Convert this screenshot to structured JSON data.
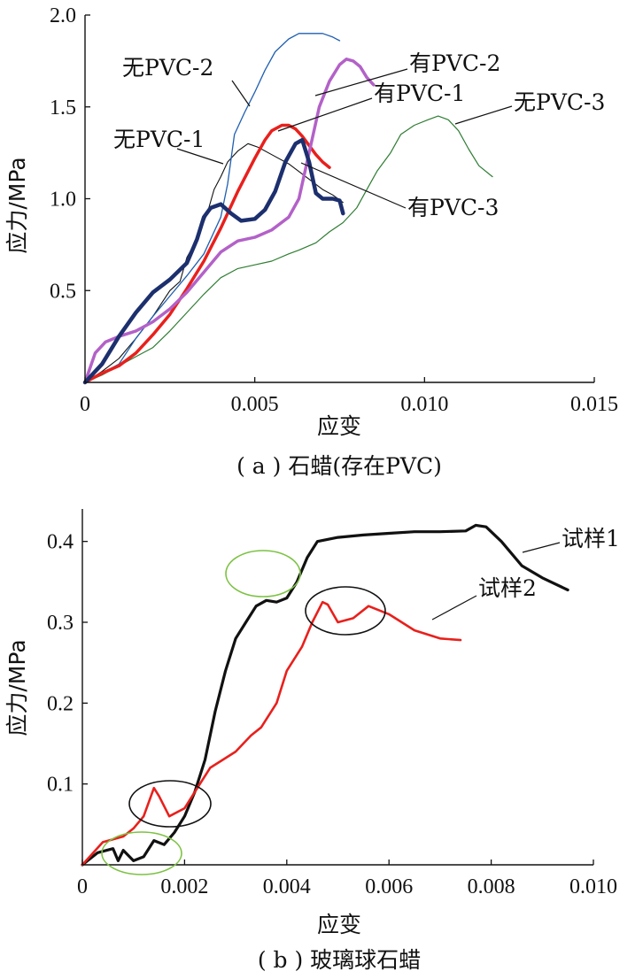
{
  "chart_data": [
    {
      "type": "line",
      "caption": "( a ) 石蜡(存在PVC)",
      "xlabel": "应变",
      "ylabel": "应力/MPa",
      "xlim": [
        0,
        0.015
      ],
      "ylim": [
        0,
        2.0
      ],
      "xticks": [
        {
          "v": 0,
          "label": "0"
        },
        {
          "v": 0.005,
          "label": "0.005"
        },
        {
          "v": 0.01,
          "label": "0.010"
        },
        {
          "v": 0.015,
          "label": "0.015"
        }
      ],
      "yticks": [
        {
          "v": 0.5,
          "label": "0.5"
        },
        {
          "v": 1.0,
          "label": "1.0"
        },
        {
          "v": 1.5,
          "label": "1.5"
        },
        {
          "v": 2.0,
          "label": "2.0"
        }
      ],
      "series": [
        {
          "name": "无PVC-1",
          "color": "#111111",
          "width": 1.1,
          "points": [
            [
              0,
              0
            ],
            [
              0.0005,
              0.06
            ],
            [
              0.001,
              0.13
            ],
            [
              0.0015,
              0.24
            ],
            [
              0.002,
              0.36
            ],
            [
              0.0025,
              0.5
            ],
            [
              0.0028,
              0.55
            ],
            [
              0.003,
              0.68
            ],
            [
              0.0033,
              0.78
            ],
            [
              0.0036,
              0.92
            ],
            [
              0.0038,
              1.05
            ],
            [
              0.004,
              1.12
            ],
            [
              0.0042,
              1.2
            ],
            [
              0.0045,
              1.26
            ],
            [
              0.0048,
              1.3
            ],
            [
              0.0051,
              1.28
            ],
            [
              0.0055,
              1.24
            ],
            [
              0.006,
              1.19
            ],
            [
              0.0065,
              1.12
            ],
            [
              0.007,
              1.05
            ],
            [
              0.0073,
              1.02
            ],
            [
              0.0076,
              0.98
            ]
          ]
        },
        {
          "name": "无PVC-2",
          "color": "#1f5fb0",
          "width": 1.3,
          "points": [
            [
              0,
              0
            ],
            [
              0.0005,
              0.05
            ],
            [
              0.001,
              0.1
            ],
            [
              0.0015,
              0.24
            ],
            [
              0.002,
              0.36
            ],
            [
              0.0025,
              0.47
            ],
            [
              0.003,
              0.58
            ],
            [
              0.0035,
              0.7
            ],
            [
              0.004,
              0.9
            ],
            [
              0.0042,
              1.08
            ],
            [
              0.0044,
              1.35
            ],
            [
              0.0047,
              1.47
            ],
            [
              0.005,
              1.58
            ],
            [
              0.0053,
              1.7
            ],
            [
              0.0056,
              1.8
            ],
            [
              0.006,
              1.87
            ],
            [
              0.0063,
              1.9
            ],
            [
              0.0067,
              1.9
            ],
            [
              0.007,
              1.9
            ],
            [
              0.0073,
              1.88
            ],
            [
              0.0075,
              1.86
            ]
          ]
        },
        {
          "name": "无PVC-3",
          "color": "#2e7d32",
          "width": 1.2,
          "points": [
            [
              0,
              0
            ],
            [
              0.0005,
              0.04
            ],
            [
              0.001,
              0.09
            ],
            [
              0.0015,
              0.14
            ],
            [
              0.002,
              0.19
            ],
            [
              0.0025,
              0.28
            ],
            [
              0.003,
              0.38
            ],
            [
              0.0035,
              0.48
            ],
            [
              0.004,
              0.57
            ],
            [
              0.0045,
              0.62
            ],
            [
              0.005,
              0.64
            ],
            [
              0.0055,
              0.66
            ],
            [
              0.006,
              0.7
            ],
            [
              0.0063,
              0.72
            ],
            [
              0.0068,
              0.76
            ],
            [
              0.0072,
              0.82
            ],
            [
              0.0076,
              0.87
            ],
            [
              0.008,
              0.95
            ],
            [
              0.0083,
              1.05
            ],
            [
              0.0086,
              1.15
            ],
            [
              0.009,
              1.25
            ],
            [
              0.0093,
              1.35
            ],
            [
              0.0097,
              1.4
            ],
            [
              0.0101,
              1.43
            ],
            [
              0.0104,
              1.45
            ],
            [
              0.0107,
              1.43
            ],
            [
              0.011,
              1.37
            ],
            [
              0.0113,
              1.27
            ],
            [
              0.0116,
              1.18
            ],
            [
              0.012,
              1.12
            ]
          ]
        },
        {
          "name": "有PVC-1",
          "color": "#e8201c",
          "width": 3.5,
          "points": [
            [
              0,
              0
            ],
            [
              0.0005,
              0.05
            ],
            [
              0.001,
              0.09
            ],
            [
              0.0015,
              0.16
            ],
            [
              0.002,
              0.26
            ],
            [
              0.0025,
              0.37
            ],
            [
              0.003,
              0.51
            ],
            [
              0.0035,
              0.66
            ],
            [
              0.004,
              0.84
            ],
            [
              0.0045,
              1.04
            ],
            [
              0.005,
              1.22
            ],
            [
              0.0053,
              1.32
            ],
            [
              0.0055,
              1.37
            ],
            [
              0.0058,
              1.4
            ],
            [
              0.006,
              1.4
            ],
            [
              0.0062,
              1.38
            ],
            [
              0.0064,
              1.34
            ],
            [
              0.0066,
              1.29
            ],
            [
              0.0068,
              1.24
            ],
            [
              0.007,
              1.2
            ],
            [
              0.0072,
              1.17
            ]
          ]
        },
        {
          "name": "有PVC-2",
          "color": "#b361c8",
          "width": 3.5,
          "points": [
            [
              0,
              0
            ],
            [
              0.0003,
              0.16
            ],
            [
              0.0006,
              0.22
            ],
            [
              0.001,
              0.25
            ],
            [
              0.0015,
              0.28
            ],
            [
              0.002,
              0.33
            ],
            [
              0.0025,
              0.4
            ],
            [
              0.003,
              0.49
            ],
            [
              0.0035,
              0.6
            ],
            [
              0.004,
              0.71
            ],
            [
              0.0045,
              0.77
            ],
            [
              0.005,
              0.79
            ],
            [
              0.0055,
              0.83
            ],
            [
              0.006,
              0.9
            ],
            [
              0.0063,
              1.0
            ],
            [
              0.0066,
              1.25
            ],
            [
              0.0069,
              1.5
            ],
            [
              0.0072,
              1.64
            ],
            [
              0.0075,
              1.73
            ],
            [
              0.0077,
              1.76
            ],
            [
              0.0079,
              1.75
            ],
            [
              0.0081,
              1.72
            ],
            [
              0.0083,
              1.66
            ],
            [
              0.0085,
              1.62
            ]
          ]
        },
        {
          "name": "有PVC-3",
          "color": "#1c2f6e",
          "width": 4.5,
          "points": [
            [
              0,
              0
            ],
            [
              0.0005,
              0.1
            ],
            [
              0.001,
              0.25
            ],
            [
              0.0015,
              0.38
            ],
            [
              0.002,
              0.49
            ],
            [
              0.0025,
              0.56
            ],
            [
              0.003,
              0.65
            ],
            [
              0.0033,
              0.78
            ],
            [
              0.0035,
              0.9
            ],
            [
              0.0037,
              0.95
            ],
            [
              0.004,
              0.97
            ],
            [
              0.0043,
              0.92
            ],
            [
              0.0046,
              0.88
            ],
            [
              0.005,
              0.89
            ],
            [
              0.0053,
              0.94
            ],
            [
              0.0056,
              1.04
            ],
            [
              0.0059,
              1.2
            ],
            [
              0.0062,
              1.3
            ],
            [
              0.0064,
              1.32
            ],
            [
              0.0066,
              1.2
            ],
            [
              0.0068,
              1.03
            ],
            [
              0.007,
              1.0
            ],
            [
              0.0073,
              1.0
            ],
            [
              0.0075,
              0.99
            ],
            [
              0.0076,
              0.92
            ]
          ]
        }
      ],
      "annotations": [
        {
          "text": "无PVC-2",
          "series": "无PVC-2"
        },
        {
          "text": "有PVC-2",
          "series": "有PVC-2"
        },
        {
          "text": "有PVC-1",
          "series": "有PVC-1"
        },
        {
          "text": "无PVC-3",
          "series": "无PVC-3"
        },
        {
          "text": "无PVC-1",
          "series": "无PVC-1"
        },
        {
          "text": "有PVC-3",
          "series": "有PVC-3"
        }
      ]
    },
    {
      "type": "line",
      "caption": "( b ) 玻璃球石蜡",
      "xlabel": "应变",
      "ylabel": "应力/MPa",
      "xlim": [
        0,
        0.01
      ],
      "ylim": [
        0,
        0.45
      ],
      "xticks": [
        {
          "v": 0,
          "label": "0"
        },
        {
          "v": 0.002,
          "label": "0.002"
        },
        {
          "v": 0.004,
          "label": "0.004"
        },
        {
          "v": 0.006,
          "label": "0.006"
        },
        {
          "v": 0.008,
          "label": "0.008"
        },
        {
          "v": 0.01,
          "label": "0.010"
        }
      ],
      "yticks": [
        {
          "v": 0.1,
          "label": "0.1"
        },
        {
          "v": 0.2,
          "label": "0.2"
        },
        {
          "v": 0.3,
          "label": "0.3"
        },
        {
          "v": 0.4,
          "label": "0.4"
        }
      ],
      "series": [
        {
          "name": "试样1",
          "color": "#111111",
          "width": 3.2,
          "points": [
            [
              0,
              0
            ],
            [
              0.0003,
              0.015
            ],
            [
              0.0006,
              0.02
            ],
            [
              0.0007,
              0.005
            ],
            [
              0.0008,
              0.018
            ],
            [
              0.001,
              0.005
            ],
            [
              0.0012,
              0.01
            ],
            [
              0.0014,
              0.03
            ],
            [
              0.0016,
              0.025
            ],
            [
              0.0018,
              0.04
            ],
            [
              0.002,
              0.06
            ],
            [
              0.0022,
              0.09
            ],
            [
              0.0024,
              0.13
            ],
            [
              0.0026,
              0.19
            ],
            [
              0.0028,
              0.24
            ],
            [
              0.003,
              0.28
            ],
            [
              0.0032,
              0.3
            ],
            [
              0.0034,
              0.32
            ],
            [
              0.0036,
              0.327
            ],
            [
              0.0038,
              0.325
            ],
            [
              0.004,
              0.33
            ],
            [
              0.0042,
              0.35
            ],
            [
              0.0044,
              0.38
            ],
            [
              0.0046,
              0.4
            ],
            [
              0.005,
              0.405
            ],
            [
              0.0055,
              0.408
            ],
            [
              0.006,
              0.41
            ],
            [
              0.0065,
              0.412
            ],
            [
              0.007,
              0.412
            ],
            [
              0.0075,
              0.413
            ],
            [
              0.0077,
              0.42
            ],
            [
              0.0079,
              0.418
            ],
            [
              0.0082,
              0.4
            ],
            [
              0.0086,
              0.37
            ],
            [
              0.009,
              0.355
            ],
            [
              0.0095,
              0.34
            ]
          ]
        },
        {
          "name": "试样2",
          "color": "#e8201c",
          "width": 2.6,
          "points": [
            [
              0,
              0
            ],
            [
              0.0004,
              0.028
            ],
            [
              0.0008,
              0.035
            ],
            [
              0.001,
              0.045
            ],
            [
              0.0012,
              0.06
            ],
            [
              0.0014,
              0.095
            ],
            [
              0.0015,
              0.085
            ],
            [
              0.0017,
              0.06
            ],
            [
              0.002,
              0.07
            ],
            [
              0.0022,
              0.09
            ],
            [
              0.0025,
              0.12
            ],
            [
              0.003,
              0.14
            ],
            [
              0.0033,
              0.16
            ],
            [
              0.0035,
              0.17
            ],
            [
              0.0038,
              0.2
            ],
            [
              0.004,
              0.24
            ],
            [
              0.0043,
              0.27
            ],
            [
              0.0045,
              0.3
            ],
            [
              0.0047,
              0.325
            ],
            [
              0.0048,
              0.322
            ],
            [
              0.005,
              0.3
            ],
            [
              0.0053,
              0.305
            ],
            [
              0.0056,
              0.32
            ],
            [
              0.006,
              0.31
            ],
            [
              0.0065,
              0.29
            ],
            [
              0.007,
              0.28
            ],
            [
              0.0074,
              0.278
            ]
          ]
        }
      ],
      "annotations": [
        {
          "text": "试样1",
          "series": "试样1"
        },
        {
          "text": "试样2",
          "series": "试样2"
        }
      ]
    }
  ]
}
